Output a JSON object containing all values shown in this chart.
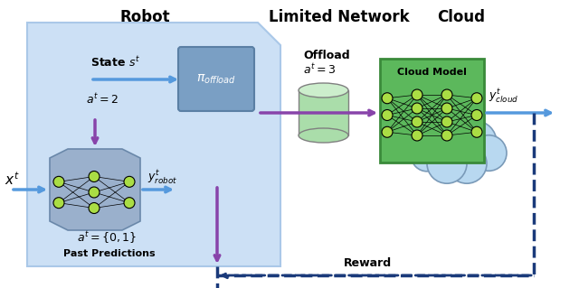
{
  "title_robot": "Robot",
  "title_network": "Limited Network",
  "title_cloud": "Cloud",
  "bg_color": "#ffffff",
  "robot_box_color": "#cce0f5",
  "robot_box_edge": "#aac8e8",
  "cloud_color": "#b8d8f0",
  "cloud_edge": "#8ab4d0",
  "pi_box_color": "#7a9fc4",
  "pi_box_edge": "#5a7fa4",
  "cloud_model_bg": "#5cb85c",
  "cloud_model_edge": "#3a8a3a",
  "robot_model_bg": "#9ab0cc",
  "robot_model_edge": "#6a88aa",
  "node_color": "#aadd44",
  "arrow_blue": "#5599dd",
  "arrow_purple": "#8844aa",
  "arrow_dashed": "#1a3a7a",
  "text_color": "#000000",
  "offload_cylinder_color": "#aaddaa"
}
